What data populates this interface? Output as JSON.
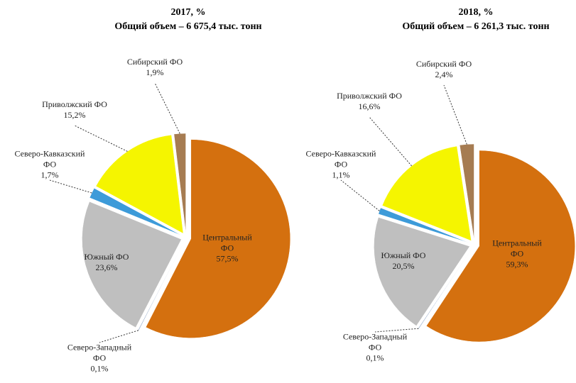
{
  "chart_data": [
    {
      "type": "pie",
      "title": "2017, %",
      "subtitle": "Общий объем – 6 675,4 тыс. тонн",
      "categories": [
        "Центральный ФО",
        "Северо-Западный ФО",
        "Южный ФО",
        "Северо-Кавказский ФО",
        "Приволжский ФО",
        "Сибирский ФО"
      ],
      "values": [
        57.5,
        0.1,
        23.6,
        1.7,
        15.2,
        1.9
      ],
      "value_labels": [
        "57,5%",
        "0,1%",
        "23,6%",
        "1,7%",
        "15,2%",
        "1,9%"
      ],
      "colors": [
        "#d4700f",
        "#4a6fa5",
        "#bfbfbf",
        "#3d9bd9",
        "#f5f500",
        "#a67c52"
      ]
    },
    {
      "type": "pie",
      "title": "2018, %",
      "subtitle": "Общий объем – 6 261,3 тыс. тонн",
      "categories": [
        "Центральный ФО",
        "Северо-Западный ФО",
        "Южный ФО",
        "Северо-Кавказский ФО",
        "Приволжский ФО",
        "Сибирский ФО"
      ],
      "values": [
        59.3,
        0.1,
        20.5,
        1.1,
        16.6,
        2.4
      ],
      "value_labels": [
        "59,3%",
        "0,1%",
        "20,5%",
        "1,1%",
        "16,6%",
        "2,4%"
      ],
      "colors": [
        "#d4700f",
        "#4a6fa5",
        "#bfbfbf",
        "#3d9bd9",
        "#f5f500",
        "#a67c52"
      ]
    }
  ]
}
